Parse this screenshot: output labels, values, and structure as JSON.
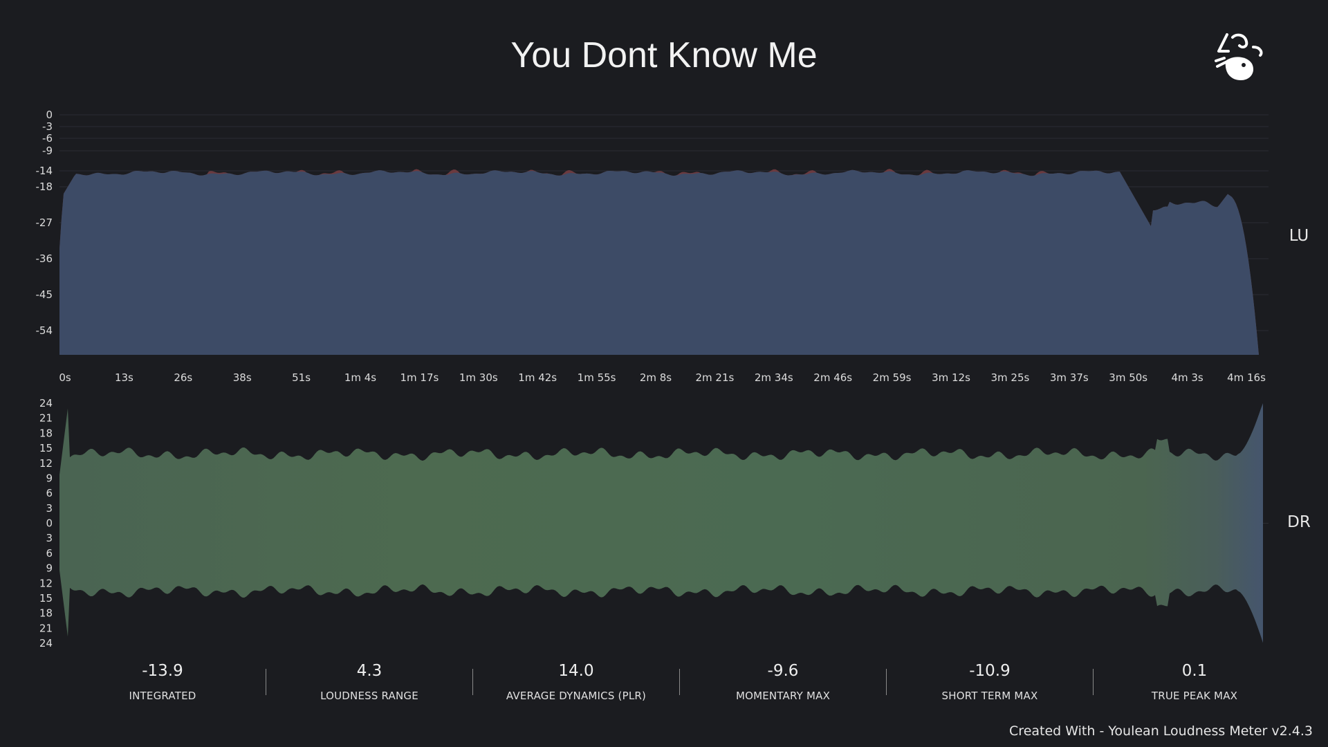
{
  "title": "You Dont Know Me",
  "footer": "Created With - Youlean Loudness Meter v2.4.3",
  "chart_data": [
    {
      "type": "area",
      "label": "LU",
      "highlight_tick": "-14",
      "y_ticks": [
        "0",
        "-3",
        "-6",
        "-9",
        "-14",
        "-18",
        "-27",
        "-36",
        "-45",
        "-54"
      ],
      "x_ticks": [
        "0s",
        "13s",
        "26s",
        "38s",
        "51s",
        "1m 4s",
        "1m 17s",
        "1m 30s",
        "1m 42s",
        "1m 55s",
        "2m 8s",
        "2m 21s",
        "2m 34s",
        "2m 46s",
        "2m 59s",
        "3m 12s",
        "3m 25s",
        "3m 37s",
        "3m 50s",
        "4m 3s",
        "4m 16s"
      ],
      "colors": {
        "area": "#3d4b66",
        "above_target": "#6b3a3f",
        "grid": "#2b2d33",
        "highlight": "#e0a030"
      }
    },
    {
      "type": "area",
      "label": "DR",
      "y_ticks": [
        "24",
        "21",
        "18",
        "15",
        "12",
        "9",
        "6",
        "3",
        "0",
        "3",
        "6",
        "9",
        "12",
        "15",
        "18",
        "21",
        "24"
      ],
      "colors": {
        "area": "#4b6a52",
        "tail": "#45556d"
      }
    }
  ],
  "stats": [
    {
      "value": "-13.9",
      "label": "INTEGRATED"
    },
    {
      "value": "4.3",
      "label": "LOUDNESS RANGE"
    },
    {
      "value": "14.0",
      "label": "AVERAGE DYNAMICS (PLR)"
    },
    {
      "value": "-9.6",
      "label": "MOMENTARY MAX"
    },
    {
      "value": "-10.9",
      "label": "SHORT TERM MAX"
    },
    {
      "value": "0.1",
      "label": "TRUE PEAK MAX"
    }
  ]
}
